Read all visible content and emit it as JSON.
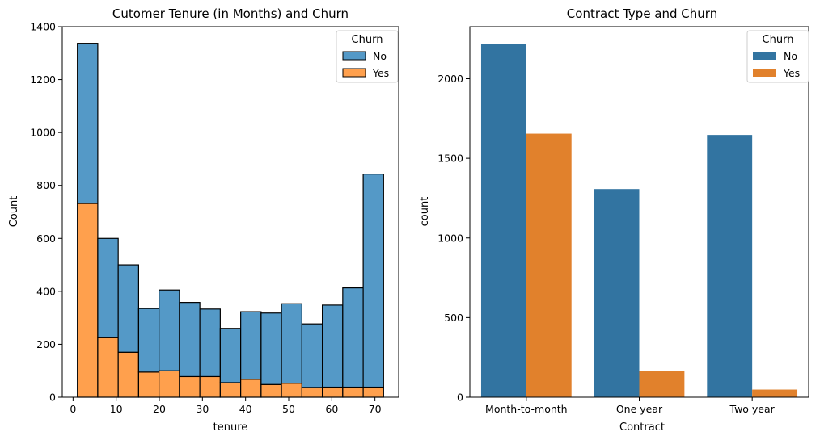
{
  "chart_data": [
    {
      "type": "bar",
      "stacked": true,
      "title": "Cutomer Tenure (in Months) and Churn",
      "xlabel": "tenure",
      "ylabel": "Count",
      "xlim": [
        -2.5,
        75.5
      ],
      "ylim": [
        0,
        1400
      ],
      "xticks": [
        0,
        10,
        20,
        30,
        40,
        50,
        60,
        70
      ],
      "yticks": [
        0,
        200,
        400,
        600,
        800,
        1000,
        1200,
        1400
      ],
      "bin_edges": [
        1,
        5.73,
        10.47,
        15.2,
        19.93,
        24.67,
        29.4,
        34.13,
        38.87,
        43.6,
        48.33,
        53.07,
        57.8,
        62.53,
        67.27,
        72
      ],
      "series": [
        {
          "name": "No",
          "color": "#5499c7",
          "values": [
            605,
            375,
            330,
            240,
            305,
            280,
            255,
            205,
            255,
            270,
            300,
            240,
            310,
            375,
            805
          ]
        },
        {
          "name": "Yes",
          "color": "#ffa04d",
          "values": [
            732,
            225,
            170,
            95,
            100,
            78,
            78,
            55,
            68,
            48,
            53,
            37,
            38,
            38,
            38
          ]
        }
      ],
      "legend": {
        "title": "Churn",
        "position": "top-right"
      }
    },
    {
      "type": "bar",
      "title": "Contract Type and Churn",
      "xlabel": "Contract",
      "ylabel": "count",
      "categories": [
        "Month-to-month",
        "One year",
        "Two year"
      ],
      "ylim": [
        0,
        2327
      ],
      "yticks": [
        0,
        500,
        1000,
        1500,
        2000
      ],
      "series": [
        {
          "name": "No",
          "color": "#3274a1",
          "values": [
            2220,
            1307,
            1647
          ]
        },
        {
          "name": "Yes",
          "color": "#e1812c",
          "values": [
            1655,
            166,
            48
          ]
        }
      ],
      "legend": {
        "title": "Churn",
        "position": "top-right"
      }
    }
  ]
}
